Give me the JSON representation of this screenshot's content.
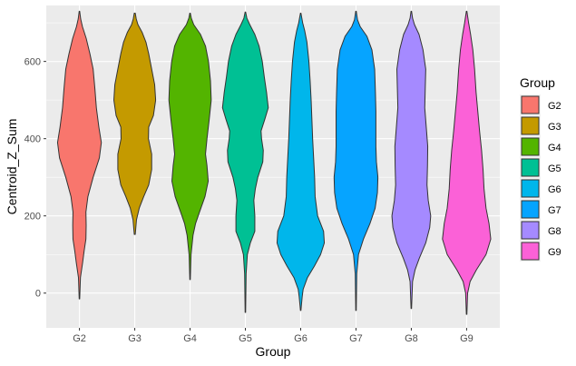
{
  "chart_data": {
    "type": "violin",
    "title": "",
    "xlabel": "Group",
    "ylabel": "Centroid_Z_Sum",
    "categories": [
      "G2",
      "G3",
      "G4",
      "G5",
      "G6",
      "G7",
      "G8",
      "G9"
    ],
    "ylim": [
      -90,
      745
    ],
    "yticks": [
      0,
      200,
      400,
      600
    ],
    "grid": true,
    "legend": {
      "title": "Group",
      "position": "right"
    },
    "series": [
      {
        "name": "G2",
        "color": "#F8766D",
        "range": [
          -15,
          730
        ],
        "profile": [
          [
            -15,
            0.01
          ],
          [
            40,
            0.04
          ],
          [
            80,
            0.13
          ],
          [
            110,
            0.19
          ],
          [
            140,
            0.26
          ],
          [
            175,
            0.27
          ],
          [
            210,
            0.26
          ],
          [
            250,
            0.34
          ],
          [
            300,
            0.55
          ],
          [
            350,
            0.8
          ],
          [
            390,
            0.88
          ],
          [
            430,
            0.78
          ],
          [
            480,
            0.68
          ],
          [
            530,
            0.62
          ],
          [
            580,
            0.55
          ],
          [
            620,
            0.42
          ],
          [
            660,
            0.27
          ],
          [
            690,
            0.12
          ],
          [
            710,
            0.05
          ],
          [
            730,
            0.01
          ]
        ]
      },
      {
        "name": "G3",
        "color": "#C49A00",
        "range": [
          152,
          725
        ],
        "profile": [
          [
            152,
            0.02
          ],
          [
            190,
            0.07
          ],
          [
            220,
            0.18
          ],
          [
            250,
            0.36
          ],
          [
            280,
            0.56
          ],
          [
            320,
            0.68
          ],
          [
            360,
            0.68
          ],
          [
            400,
            0.55
          ],
          [
            430,
            0.56
          ],
          [
            460,
            0.75
          ],
          [
            500,
            0.84
          ],
          [
            540,
            0.8
          ],
          [
            580,
            0.68
          ],
          [
            620,
            0.56
          ],
          [
            650,
            0.45
          ],
          [
            675,
            0.3
          ],
          [
            695,
            0.13
          ],
          [
            710,
            0.06
          ],
          [
            725,
            0.02
          ]
        ]
      },
      {
        "name": "G4",
        "color": "#53B400",
        "range": [
          35,
          725
        ],
        "profile": [
          [
            35,
            0.01
          ],
          [
            100,
            0.04
          ],
          [
            150,
            0.12
          ],
          [
            180,
            0.22
          ],
          [
            210,
            0.38
          ],
          [
            250,
            0.6
          ],
          [
            290,
            0.73
          ],
          [
            330,
            0.68
          ],
          [
            360,
            0.62
          ],
          [
            400,
            0.68
          ],
          [
            450,
            0.77
          ],
          [
            500,
            0.85
          ],
          [
            550,
            0.82
          ],
          [
            600,
            0.74
          ],
          [
            640,
            0.62
          ],
          [
            670,
            0.42
          ],
          [
            695,
            0.15
          ],
          [
            712,
            0.05
          ],
          [
            725,
            0.01
          ]
        ]
      },
      {
        "name": "G5",
        "color": "#00C094",
        "range": [
          -50,
          728
        ],
        "profile": [
          [
            -50,
            0.01
          ],
          [
            50,
            0.03
          ],
          [
            100,
            0.08
          ],
          [
            130,
            0.2
          ],
          [
            160,
            0.38
          ],
          [
            200,
            0.38
          ],
          [
            240,
            0.34
          ],
          [
            270,
            0.4
          ],
          [
            300,
            0.5
          ],
          [
            340,
            0.7
          ],
          [
            370,
            0.72
          ],
          [
            400,
            0.65
          ],
          [
            420,
            0.63
          ],
          [
            450,
            0.78
          ],
          [
            480,
            0.92
          ],
          [
            520,
            0.85
          ],
          [
            560,
            0.76
          ],
          [
            600,
            0.68
          ],
          [
            640,
            0.55
          ],
          [
            670,
            0.38
          ],
          [
            695,
            0.18
          ],
          [
            712,
            0.06
          ],
          [
            728,
            0.01
          ]
        ]
      },
      {
        "name": "G6",
        "color": "#00B6EB",
        "range": [
          -45,
          725
        ],
        "profile": [
          [
            -45,
            0.01
          ],
          [
            -10,
            0.06
          ],
          [
            10,
            0.1
          ],
          [
            40,
            0.27
          ],
          [
            70,
            0.55
          ],
          [
            100,
            0.8
          ],
          [
            130,
            0.95
          ],
          [
            160,
            0.92
          ],
          [
            200,
            0.68
          ],
          [
            250,
            0.58
          ],
          [
            300,
            0.56
          ],
          [
            350,
            0.52
          ],
          [
            400,
            0.48
          ],
          [
            450,
            0.45
          ],
          [
            500,
            0.42
          ],
          [
            550,
            0.38
          ],
          [
            600,
            0.33
          ],
          [
            650,
            0.25
          ],
          [
            680,
            0.16
          ],
          [
            700,
            0.08
          ],
          [
            725,
            0.01
          ]
        ]
      },
      {
        "name": "G7",
        "color": "#06A4FF",
        "range": [
          -45,
          730
        ],
        "profile": [
          [
            -45,
            0.01
          ],
          [
            50,
            0.03
          ],
          [
            100,
            0.1
          ],
          [
            140,
            0.3
          ],
          [
            180,
            0.56
          ],
          [
            220,
            0.77
          ],
          [
            260,
            0.86
          ],
          [
            300,
            0.88
          ],
          [
            340,
            0.82
          ],
          [
            380,
            0.8
          ],
          [
            420,
            0.8
          ],
          [
            470,
            0.8
          ],
          [
            520,
            0.78
          ],
          [
            580,
            0.75
          ],
          [
            630,
            0.64
          ],
          [
            665,
            0.44
          ],
          [
            690,
            0.17
          ],
          [
            708,
            0.06
          ],
          [
            730,
            0.01
          ]
        ]
      },
      {
        "name": "G8",
        "color": "#A58AFF",
        "range": [
          -40,
          730
        ],
        "profile": [
          [
            -40,
            0.01
          ],
          [
            30,
            0.05
          ],
          [
            60,
            0.15
          ],
          [
            90,
            0.32
          ],
          [
            130,
            0.58
          ],
          [
            170,
            0.74
          ],
          [
            200,
            0.78
          ],
          [
            240,
            0.68
          ],
          [
            280,
            0.63
          ],
          [
            330,
            0.65
          ],
          [
            380,
            0.66
          ],
          [
            430,
            0.6
          ],
          [
            480,
            0.54
          ],
          [
            530,
            0.56
          ],
          [
            580,
            0.58
          ],
          [
            630,
            0.47
          ],
          [
            670,
            0.31
          ],
          [
            695,
            0.13
          ],
          [
            712,
            0.05
          ],
          [
            730,
            0.01
          ]
        ]
      },
      {
        "name": "G9",
        "color": "#FB61D7",
        "range": [
          -55,
          730
        ],
        "profile": [
          [
            -55,
            0.01
          ],
          [
            0,
            0.04
          ],
          [
            30,
            0.14
          ],
          [
            60,
            0.39
          ],
          [
            100,
            0.78
          ],
          [
            140,
            0.97
          ],
          [
            180,
            0.9
          ],
          [
            220,
            0.78
          ],
          [
            270,
            0.7
          ],
          [
            320,
            0.66
          ],
          [
            370,
            0.6
          ],
          [
            420,
            0.52
          ],
          [
            470,
            0.45
          ],
          [
            520,
            0.38
          ],
          [
            580,
            0.32
          ],
          [
            630,
            0.25
          ],
          [
            670,
            0.16
          ],
          [
            700,
            0.08
          ],
          [
            730,
            0.01
          ]
        ]
      }
    ]
  }
}
